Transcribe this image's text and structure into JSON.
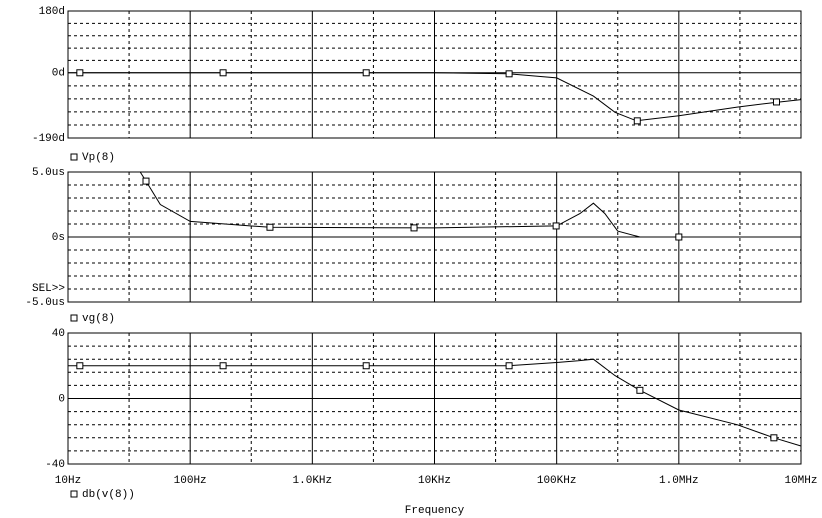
{
  "chart_data": [
    {
      "type": "line",
      "log_x": true,
      "grid": true,
      "xlim": [
        10,
        10000000
      ],
      "xticks": [
        10,
        100,
        1000,
        10000,
        100000,
        1000000,
        10000000
      ],
      "ylim": [
        -190,
        180
      ],
      "yticks": [
        {
          "value": 180,
          "label": "180d"
        },
        {
          "value": 0,
          "label": "0d"
        },
        {
          "value": -190,
          "label": "-190d"
        }
      ],
      "series": [
        {
          "name": "Vp(8)",
          "color": "#000000",
          "x": [
            10,
            30,
            10000,
            40000,
            100000,
            200000,
            300000,
            450000,
            1000000,
            3000000,
            6000000,
            10000000
          ],
          "values": [
            0,
            0,
            0,
            -3,
            -15,
            -68,
            -115,
            -140,
            -125,
            -100,
            -87,
            -78
          ],
          "markers": {
            "x": [
              12.5,
              186,
              2760,
              40800,
              457000,
              6300000
            ],
            "values": [
              0,
              0,
              0,
              -3,
              -140,
              -85
            ]
          }
        }
      ]
    },
    {
      "type": "line",
      "log_x": true,
      "grid": true,
      "annotation": "SEL>>",
      "xlim": [
        10,
        10000000
      ],
      "xticks": [
        10,
        100,
        1000,
        10000,
        100000,
        1000000,
        10000000
      ],
      "ylim": [
        -5,
        5
      ],
      "yticks": [
        {
          "value": 5,
          "label": "5.0us"
        },
        {
          "value": 0,
          "label": "0s"
        },
        {
          "value": -5,
          "label": "-5.0us"
        }
      ],
      "series": [
        {
          "name": "vg(8)",
          "color": "#000000",
          "x": [
            39,
            43.5,
            57,
            100,
            450,
            10000,
            100000,
            155000,
            200000,
            248000,
            316000,
            480000,
            1700000
          ],
          "values": [
            5,
            4.3,
            2.5,
            1.2,
            0.75,
            0.7,
            0.85,
            1.8,
            2.6,
            1.8,
            0.45,
            0,
            0
          ],
          "markers": {
            "x": [
              43.5,
              450,
              6800,
              99000,
              1000000
            ],
            "values": [
              4.3,
              0.75,
              0.7,
              0.85,
              0
            ]
          }
        }
      ]
    },
    {
      "type": "line",
      "log_x": true,
      "grid": true,
      "xlabel": "Frequency",
      "xlim": [
        10,
        10000000
      ],
      "xticks": [
        {
          "value": 10,
          "label": "10Hz"
        },
        {
          "value": 100,
          "label": "100Hz"
        },
        {
          "value": 1000,
          "label": "1.0KHz"
        },
        {
          "value": 10000,
          "label": "10KHz"
        },
        {
          "value": 100000,
          "label": "100KHz"
        },
        {
          "value": 1000000,
          "label": "1.0MHz"
        },
        {
          "value": 10000000,
          "label": "10MHz"
        }
      ],
      "ylim": [
        -40,
        40
      ],
      "yticks": [
        40,
        0,
        -40
      ],
      "series": [
        {
          "name": "db(v(8))",
          "color": "#000000",
          "x": [
            10,
            10000,
            40000,
            100000,
            150000,
            200000,
            300000,
            480000,
            1000000,
            3000000,
            6000000,
            10000000
          ],
          "values": [
            20,
            20,
            20,
            22,
            23,
            24,
            14,
            5,
            -7,
            -16,
            -24,
            -29
          ],
          "markers": {
            "x": [
              12.5,
              186,
              2760,
              40800,
              480000,
              6000000
            ],
            "values": [
              20,
              20,
              20,
              20,
              5,
              -24
            ]
          }
        }
      ]
    }
  ]
}
